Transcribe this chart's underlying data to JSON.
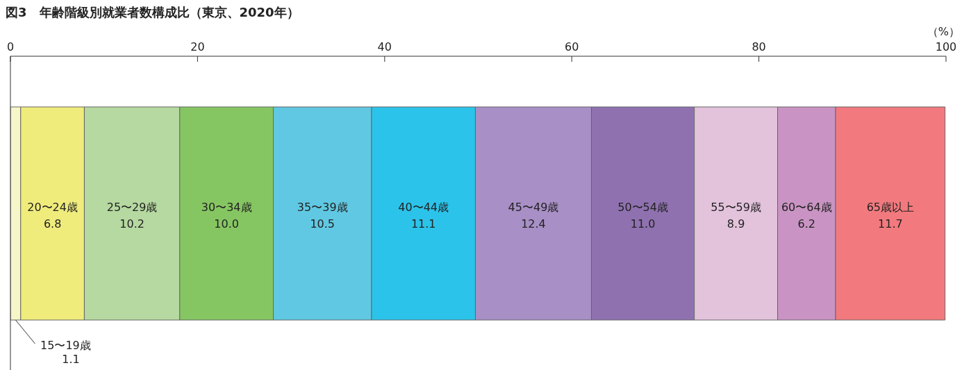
{
  "chart_data": {
    "type": "bar",
    "orientation": "horizontal",
    "stacked": true,
    "title": "図3　年齢階級別就業者数構成比（東京、2020年）",
    "xlabel": "（%）",
    "categories": [
      null
    ],
    "xlim": [
      0,
      100
    ],
    "xticks": [
      0,
      20,
      40,
      60,
      80,
      100
    ],
    "legend": false,
    "grid": false,
    "annotations": [
      "1.1"
    ],
    "series": [
      {
        "name": "15〜19歳",
        "color": "#f7f6c8",
        "values": [
          1.1
        ],
        "value_labels": [
          null
        ]
      },
      {
        "name": "20〜24歳",
        "color": "#f0ec7c",
        "values": [
          6.8
        ],
        "value_labels": [
          "6.8"
        ]
      },
      {
        "name": "25〜29歳",
        "color": "#b5d9a0",
        "values": [
          10.2
        ],
        "value_labels": [
          "10.2"
        ]
      },
      {
        "name": "30〜34歳",
        "color": "#86c662",
        "values": [
          10.0
        ],
        "value_labels": [
          "10.0"
        ]
      },
      {
        "name": "35〜39歳",
        "color": "#60c8e2",
        "values": [
          10.5
        ],
        "value_labels": [
          "10.5"
        ]
      },
      {
        "name": "40〜44歳",
        "color": "#2cc3ea",
        "values": [
          11.1
        ],
        "value_labels": [
          "11.1"
        ]
      },
      {
        "name": "45〜49歳",
        "color": "#a88fc6",
        "values": [
          12.4
        ],
        "value_labels": [
          "12.4"
        ]
      },
      {
        "name": "50〜54歳",
        "color": "#8f71b0",
        "values": [
          11.0
        ],
        "value_labels": [
          "11.0"
        ]
      },
      {
        "name": "55〜59歳",
        "color": "#e3c3dc",
        "values": [
          8.9
        ],
        "value_labels": [
          "8.9"
        ]
      },
      {
        "name": "60〜64歳",
        "color": "#c994c3",
        "values": [
          6.2
        ],
        "value_labels": [
          "6.2"
        ]
      },
      {
        "name": "65歳以上",
        "color": "#f27a7e",
        "values": [
          11.7
        ],
        "value_labels": [
          "11.7"
        ]
      }
    ]
  }
}
